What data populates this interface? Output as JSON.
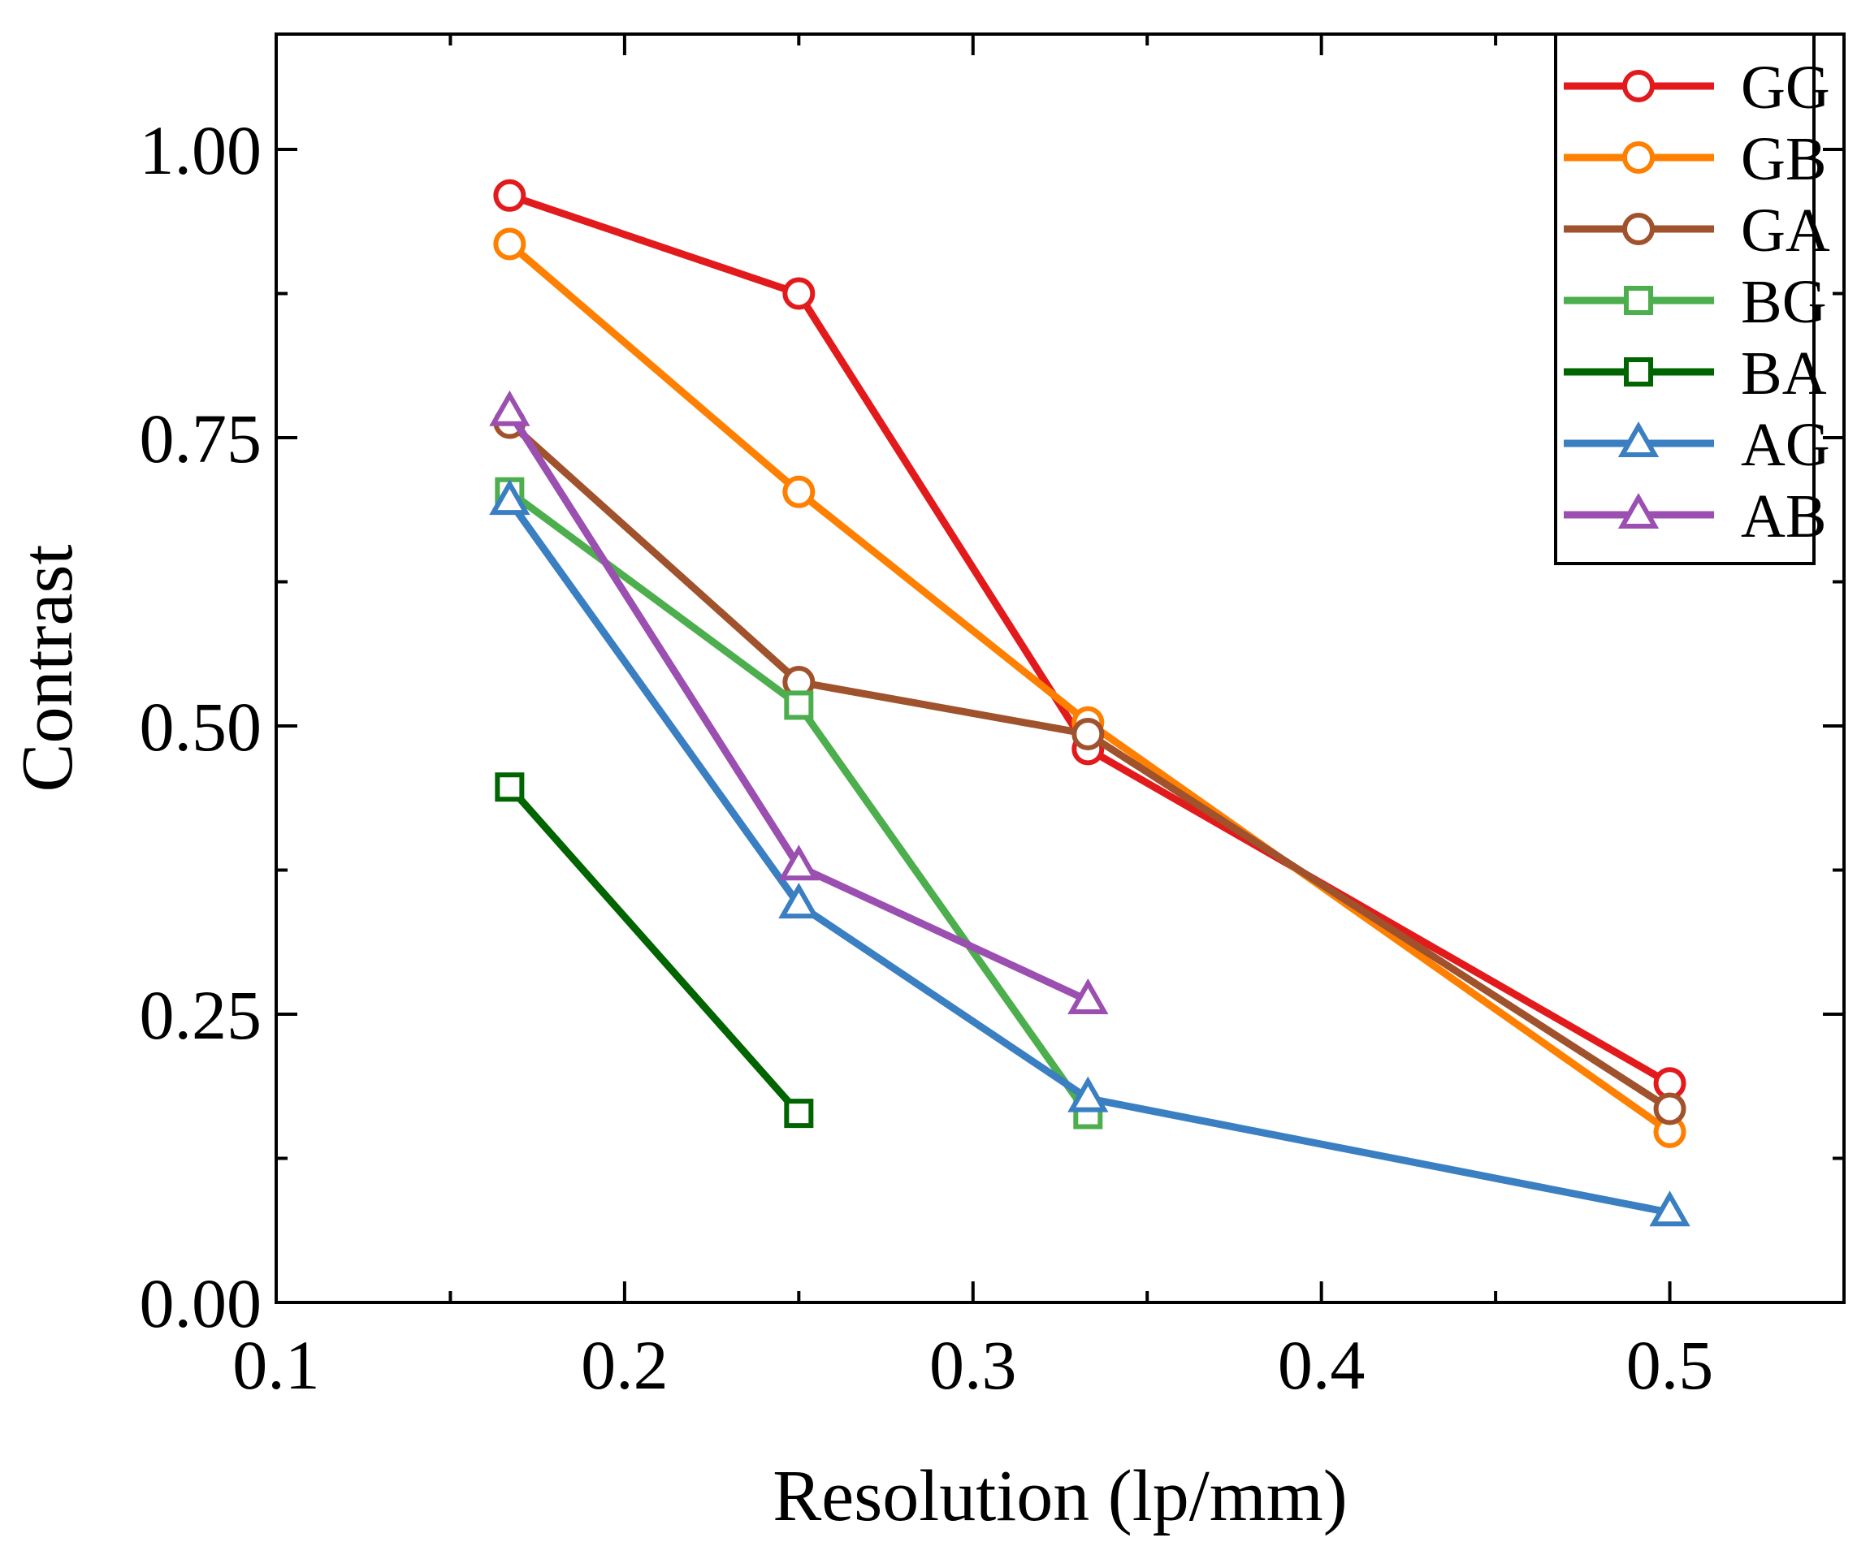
{
  "chart_data": {
    "type": "line",
    "title": "",
    "xlabel": "Resolution (lp/mm)",
    "ylabel": "Contrast",
    "xlim": [
      0.1,
      0.55
    ],
    "ylim": [
      0,
      1.1
    ],
    "xticks": [
      0.1,
      0.2,
      0.3,
      0.4,
      0.5
    ],
    "xtick_labels": [
      "0.1",
      "0.2",
      "0.3",
      "0.4",
      "0.5"
    ],
    "yticks": [
      0,
      0.25,
      0.5,
      0.75,
      1.0
    ],
    "ytick_labels": [
      "0.00",
      "0.25",
      "0.50",
      "0.75",
      "1.00"
    ],
    "minor_xticks": [
      0.15,
      0.25,
      0.35,
      0.45,
      0.55
    ],
    "minor_yticks": [
      0.125,
      0.375,
      0.625,
      0.875
    ],
    "grid": false,
    "legend_position": "top-right",
    "series": [
      {
        "name": "GG",
        "color": "#e31a1c",
        "marker": "circle",
        "x": [
          0.167,
          0.25,
          0.333,
          0.5
        ],
        "y": [
          0.96,
          0.875,
          0.48,
          0.19
        ]
      },
      {
        "name": "GB",
        "color": "#ff8000",
        "marker": "circle",
        "x": [
          0.167,
          0.25,
          0.333,
          0.5
        ],
        "y": [
          0.918,
          0.703,
          0.503,
          0.148
        ]
      },
      {
        "name": "GA",
        "color": "#a0522d",
        "marker": "circle",
        "x": [
          0.167,
          0.25,
          0.333,
          0.5
        ],
        "y": [
          0.763,
          0.538,
          0.493,
          0.168
        ]
      },
      {
        "name": "BG",
        "color": "#4cae4c",
        "marker": "square",
        "x": [
          0.167,
          0.25,
          0.333
        ],
        "y": [
          0.703,
          0.518,
          0.163
        ]
      },
      {
        "name": "BA",
        "color": "#006400",
        "marker": "square",
        "x": [
          0.167,
          0.25
        ],
        "y": [
          0.447,
          0.164
        ]
      },
      {
        "name": "AG",
        "color": "#3a7fc1",
        "marker": "triangle",
        "x": [
          0.167,
          0.25,
          0.333,
          0.5
        ],
        "y": [
          0.695,
          0.345,
          0.177,
          0.078
        ]
      },
      {
        "name": "AB",
        "color": "#9b4fb0",
        "marker": "triangle",
        "x": [
          0.167,
          0.25,
          0.333
        ],
        "y": [
          0.772,
          0.378,
          0.262
        ]
      }
    ]
  }
}
